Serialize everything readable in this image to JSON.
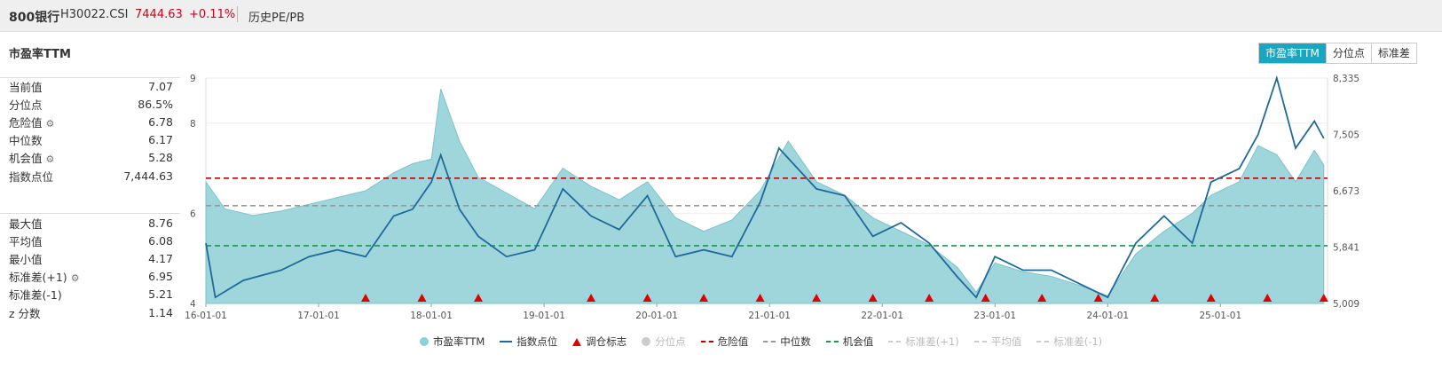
{
  "header": {
    "name": "800银行",
    "code": "H30022.CSI",
    "price": "7444.63",
    "change": "+0.11%",
    "link": "历史PE/PB"
  },
  "section_title": "市盈率TTM",
  "tabs": [
    {
      "label": "市盈率TTM",
      "active": true
    },
    {
      "label": "分位点",
      "active": false
    },
    {
      "label": "标准差",
      "active": false
    }
  ],
  "stats_top": [
    {
      "label": "当前值",
      "value": "7.07",
      "gear": false
    },
    {
      "label": "分位点",
      "value": "86.5%",
      "gear": false
    },
    {
      "label": "危险值",
      "value": "6.78",
      "gear": true
    },
    {
      "label": "中位数",
      "value": "6.17",
      "gear": false
    },
    {
      "label": "机会值",
      "value": "5.28",
      "gear": true
    },
    {
      "label": "指数点位",
      "value": "7,444.63",
      "gear": false
    }
  ],
  "stats_bottom": [
    {
      "label": "最大值",
      "value": "8.76",
      "gear": false
    },
    {
      "label": "平均值",
      "value": "6.08",
      "gear": false
    },
    {
      "label": "最小值",
      "value": "4.17",
      "gear": false
    },
    {
      "label": "标准差(+1)",
      "value": "6.95",
      "gear": true
    },
    {
      "label": "标准差(-1)",
      "value": "5.21",
      "gear": false
    },
    {
      "label": "z 分数",
      "value": "1.14",
      "gear": false
    }
  ],
  "legend": [
    {
      "label": "市盈率TTM",
      "kind": "dot",
      "color": "#8dd0d9",
      "active": true
    },
    {
      "label": "指数点位",
      "kind": "line",
      "color": "#1f6a9a",
      "active": true
    },
    {
      "label": "调仓标志",
      "kind": "triangle",
      "color": "#e00000",
      "active": true
    },
    {
      "label": "分位点",
      "kind": "dot",
      "color": "#cccccc",
      "active": false
    },
    {
      "label": "危险值",
      "kind": "dash",
      "color": "#c00000",
      "active": true
    },
    {
      "label": "中位数",
      "kind": "dash",
      "color": "#999999",
      "active": true
    },
    {
      "label": "机会值",
      "kind": "dash",
      "color": "#1a9a4a",
      "active": true
    },
    {
      "label": "标准差(+1)",
      "kind": "dash",
      "color": "#cccccc",
      "active": false
    },
    {
      "label": "平均值",
      "kind": "dash",
      "color": "#cccccc",
      "active": false
    },
    {
      "label": "标准差(-1)",
      "kind": "dash",
      "color": "#cccccc",
      "active": false
    }
  ],
  "chart_data": {
    "type": "area",
    "x_ticks": [
      "16-01-01",
      "17-01-01",
      "18-01-01",
      "19-01-01",
      "20-01-01",
      "21-01-01",
      "22-01-01",
      "23-01-01",
      "24-01-01",
      "25-01-01"
    ],
    "y_left_ticks": [
      4,
      6,
      8,
      9
    ],
    "y_left_range": [
      4,
      9
    ],
    "y_right_ticks": [
      "5,009",
      "5,841",
      "6,673",
      "7,505",
      "8,335"
    ],
    "y_right_range": [
      5009,
      8335
    ],
    "reference_lines": {
      "危险值": 6.78,
      "中位数": 6.17,
      "机会值": 5.28
    },
    "rebalance_marks": [
      "2017-06",
      "2017-12",
      "2018-06",
      "2019-06",
      "2019-12",
      "2020-06",
      "2020-12",
      "2021-06",
      "2021-12",
      "2022-06",
      "2022-12",
      "2023-06",
      "2023-12",
      "2024-06",
      "2024-12",
      "2025-06",
      "2025-12"
    ],
    "series": [
      {
        "name": "市盈率TTM",
        "axis": "left",
        "points": [
          [
            "2016-01",
            6.7
          ],
          [
            "2016-03",
            6.1
          ],
          [
            "2016-06",
            5.95
          ],
          [
            "2016-09",
            6.05
          ],
          [
            "2016-12",
            6.2
          ],
          [
            "2017-03",
            6.35
          ],
          [
            "2017-06",
            6.5
          ],
          [
            "2017-09",
            6.9
          ],
          [
            "2017-11",
            7.1
          ],
          [
            "2018-01",
            7.2
          ],
          [
            "2018-02",
            8.76
          ],
          [
            "2018-04",
            7.6
          ],
          [
            "2018-06",
            6.8
          ],
          [
            "2018-09",
            6.45
          ],
          [
            "2018-12",
            6.1
          ],
          [
            "2019-03",
            7.0
          ],
          [
            "2019-06",
            6.6
          ],
          [
            "2019-09",
            6.3
          ],
          [
            "2019-12",
            6.7
          ],
          [
            "2020-03",
            5.9
          ],
          [
            "2020-06",
            5.6
          ],
          [
            "2020-09",
            5.85
          ],
          [
            "2020-12",
            6.5
          ],
          [
            "2021-03",
            7.6
          ],
          [
            "2021-06",
            6.7
          ],
          [
            "2021-09",
            6.4
          ],
          [
            "2021-12",
            5.9
          ],
          [
            "2022-03",
            5.6
          ],
          [
            "2022-06",
            5.3
          ],
          [
            "2022-09",
            4.8
          ],
          [
            "2022-11",
            4.25
          ],
          [
            "2023-01",
            4.9
          ],
          [
            "2023-04",
            4.7
          ],
          [
            "2023-07",
            4.6
          ],
          [
            "2023-10",
            4.4
          ],
          [
            "2024-01",
            4.17
          ],
          [
            "2024-04",
            5.1
          ],
          [
            "2024-07",
            5.6
          ],
          [
            "2024-10",
            6.0
          ],
          [
            "2024-12",
            6.4
          ],
          [
            "2025-03",
            6.7
          ],
          [
            "2025-05",
            7.5
          ],
          [
            "2025-07",
            7.3
          ],
          [
            "2025-09",
            6.7
          ],
          [
            "2025-11",
            7.4
          ],
          [
            "2025-12",
            7.07
          ]
        ]
      },
      {
        "name": "指数点位",
        "axis": "right",
        "points": [
          [
            "2016-01",
            5900
          ],
          [
            "2016-02",
            5100
          ],
          [
            "2016-05",
            5350
          ],
          [
            "2016-09",
            5500
          ],
          [
            "2016-12",
            5700
          ],
          [
            "2017-03",
            5800
          ],
          [
            "2017-06",
            5700
          ],
          [
            "2017-09",
            6300
          ],
          [
            "2017-11",
            6400
          ],
          [
            "2018-01",
            6800
          ],
          [
            "2018-02",
            7200
          ],
          [
            "2018-04",
            6400
          ],
          [
            "2018-06",
            6000
          ],
          [
            "2018-09",
            5700
          ],
          [
            "2018-12",
            5800
          ],
          [
            "2019-03",
            6700
          ],
          [
            "2019-06",
            6300
          ],
          [
            "2019-09",
            6100
          ],
          [
            "2019-12",
            6600
          ],
          [
            "2020-03",
            5700
          ],
          [
            "2020-06",
            5800
          ],
          [
            "2020-09",
            5700
          ],
          [
            "2020-12",
            6500
          ],
          [
            "2021-02",
            7300
          ],
          [
            "2021-06",
            6700
          ],
          [
            "2021-09",
            6600
          ],
          [
            "2021-12",
            6000
          ],
          [
            "2022-03",
            6200
          ],
          [
            "2022-06",
            5900
          ],
          [
            "2022-09",
            5400
          ],
          [
            "2022-11",
            5100
          ],
          [
            "2023-01",
            5700
          ],
          [
            "2023-04",
            5500
          ],
          [
            "2023-07",
            5500
          ],
          [
            "2023-10",
            5300
          ],
          [
            "2024-01",
            5100
          ],
          [
            "2024-04",
            5900
          ],
          [
            "2024-07",
            6300
          ],
          [
            "2024-10",
            5900
          ],
          [
            "2024-12",
            6800
          ],
          [
            "2025-03",
            7000
          ],
          [
            "2025-05",
            7500
          ],
          [
            "2025-07",
            8335
          ],
          [
            "2025-09",
            7300
          ],
          [
            "2025-11",
            7700
          ],
          [
            "2025-12",
            7445
          ]
        ]
      }
    ]
  }
}
